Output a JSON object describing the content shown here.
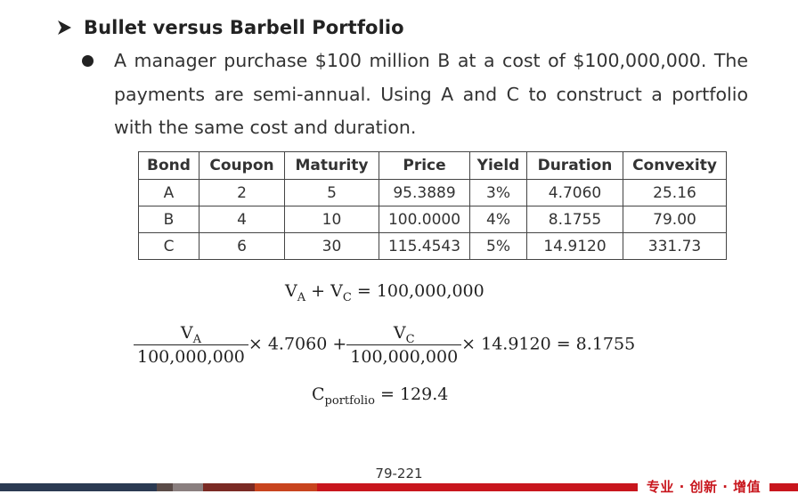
{
  "slide": {
    "heading": "Bullet versus Barbell Portfolio",
    "paragraph": "A manager purchase $100 million B at a cost of $100,000,000. The payments are semi-annual. Using A and C to construct a portfolio with the same cost and duration.",
    "page_number": "79-221",
    "brand": "专业 · 创新 · 增值"
  },
  "table": {
    "headers": [
      "Bond",
      "Coupon",
      "Maturity",
      "Price",
      "Yield",
      "Duration",
      "Convexity"
    ],
    "rows": [
      [
        "A",
        "2",
        "5",
        "95.3889",
        "3%",
        "4.7060",
        "25.16"
      ],
      [
        "B",
        "4",
        "10",
        "100.0000",
        "4%",
        "8.1755",
        "79.00"
      ],
      [
        "C",
        "6",
        "30",
        "115.4543",
        "5%",
        "14.9120",
        "331.73"
      ]
    ]
  },
  "equations": {
    "eq1": {
      "va_main": "V",
      "va_sub": "A",
      "plus": "+",
      "vc_main": "V",
      "vc_sub": "C",
      "equals": "=",
      "rhs": "100,000,000"
    },
    "eq2": {
      "frac1_num_main": "V",
      "frac1_num_sub": "A",
      "frac1_den": "100,000,000",
      "times1": "× 4.7060 +",
      "frac2_num_main": "V",
      "frac2_num_sub": "C",
      "frac2_den": "100,000,000",
      "times2": "× 14.9120 = 8.1755"
    },
    "eq3": {
      "main": "C",
      "sub": "portfolio",
      "equals": "=",
      "value": "129.4"
    }
  },
  "colors": {
    "footer_navy": "#2b3a52",
    "footer_gray": "#8a7f7f",
    "footer_dark_red": "#7a2a24",
    "footer_orange": "#c8441e",
    "footer_red": "#c8161d",
    "brand_red": "#c8161d"
  },
  "icons": {
    "heading_marker": "arrow-right-icon",
    "list_marker": "bullet-dot-icon"
  }
}
